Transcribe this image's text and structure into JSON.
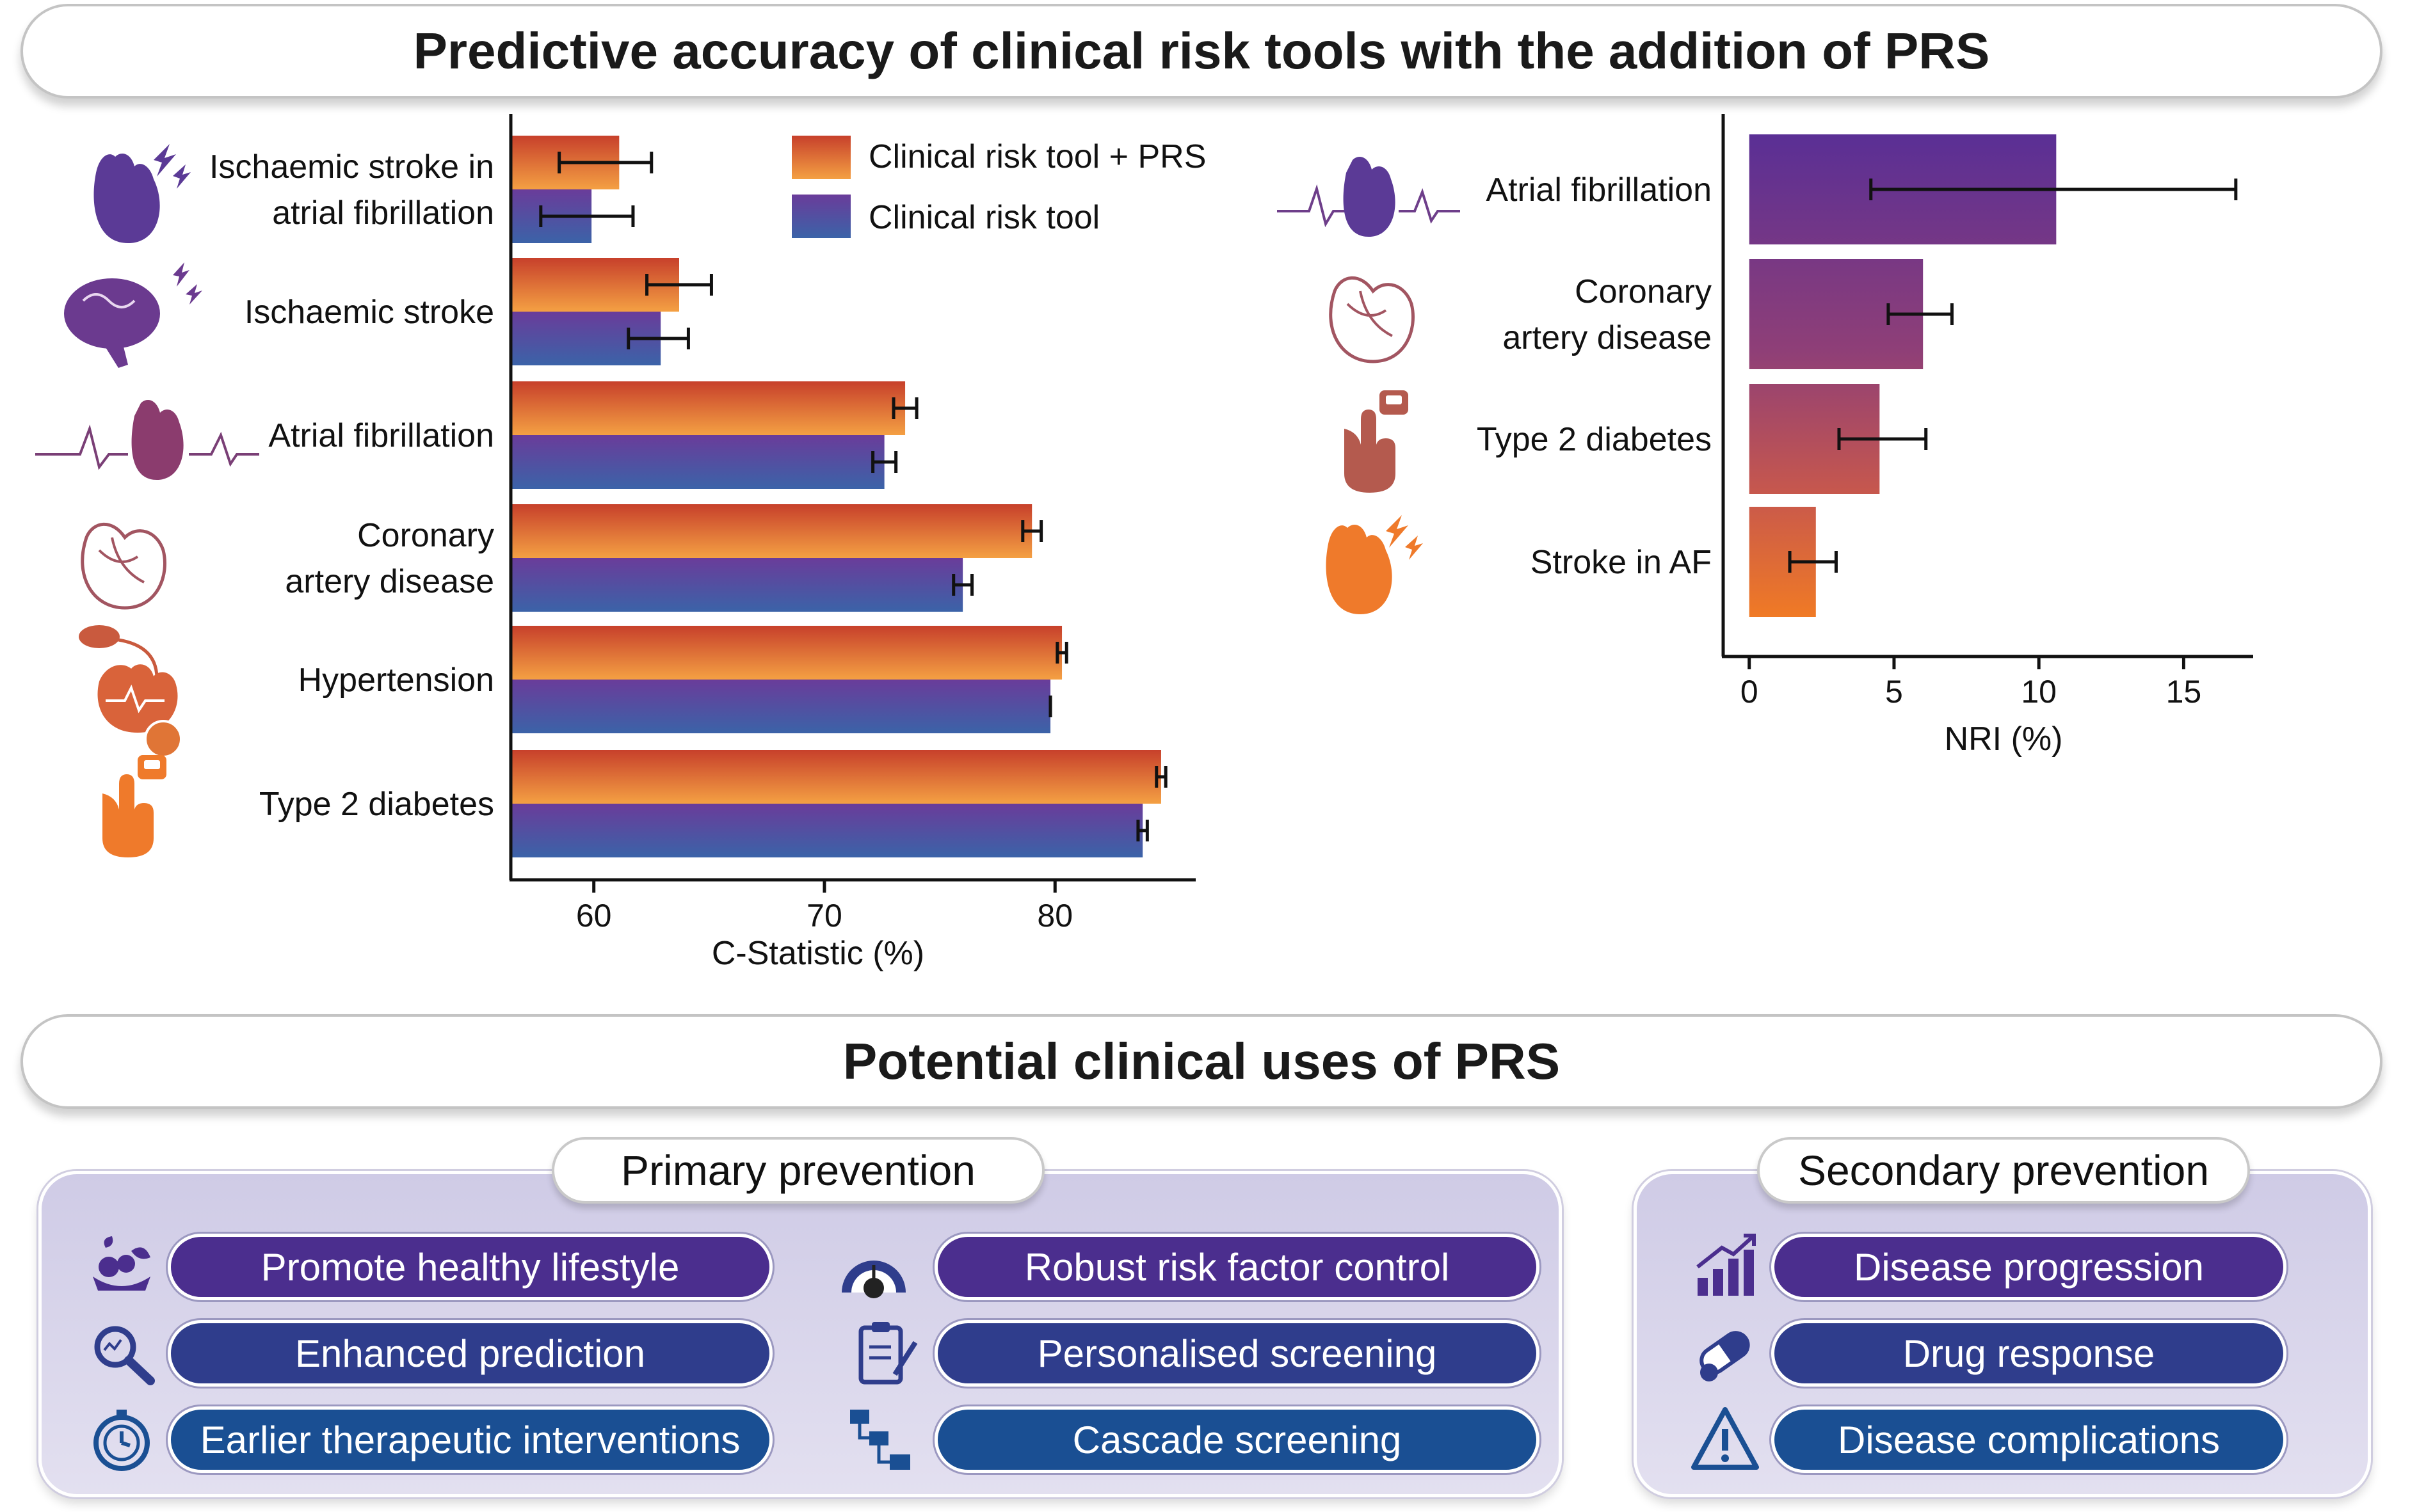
{
  "title": "Predictive accuracy of clinical risk tools with the addition of PRS",
  "section2_title": "Potential clinical uses of PRS",
  "colors": {
    "orange": "#ef7a2b",
    "purple": "#5b3a96",
    "blue": "#3b63a8"
  },
  "chart_data": [
    {
      "type": "bar",
      "orientation": "horizontal",
      "categories": [
        [
          "Ischaemic stroke in",
          "atrial fibrillation"
        ],
        [
          "Ischaemic stroke"
        ],
        [
          "Atrial fibrillation"
        ],
        [
          "Coronary",
          "artery disease"
        ],
        [
          "Hypertension"
        ],
        [
          "Type 2 diabetes"
        ]
      ],
      "series": [
        {
          "name": "Clinical risk tool + PRS",
          "values": [
            61.1,
            63.7,
            73.5,
            79.0,
            80.3,
            84.6
          ],
          "error_low": [
            58.5,
            62.3,
            73.0,
            78.6,
            80.1,
            84.4
          ],
          "error_high": [
            62.5,
            65.1,
            74.0,
            79.4,
            80.5,
            84.8
          ]
        },
        {
          "name": "Clinical risk tool",
          "values": [
            59.9,
            62.9,
            72.6,
            76.0,
            79.8,
            83.8
          ],
          "error_low": [
            57.7,
            61.5,
            72.1,
            75.6,
            79.8,
            83.6
          ],
          "error_high": [
            61.7,
            64.1,
            73.1,
            76.4,
            79.8,
            84.0
          ]
        }
      ],
      "xlabel": "C-Statistic (%)",
      "xlim": [
        56.4,
        86.1
      ],
      "xticks": [
        60,
        70,
        80
      ],
      "legend": "top-right"
    },
    {
      "type": "bar",
      "orientation": "horizontal",
      "categories": [
        [
          "Atrial fibrillation"
        ],
        [
          "Coronary",
          "artery disease"
        ],
        [
          "Type 2 diabetes"
        ],
        [
          "Stroke in AF"
        ]
      ],
      "values": [
        10.6,
        6.0,
        4.5,
        2.3
      ],
      "error_low": [
        4.2,
        4.8,
        3.1,
        1.4
      ],
      "error_high": [
        16.8,
        7.0,
        6.1,
        3.0
      ],
      "xlabel": "NRI (%)",
      "xlim": [
        -0.9,
        17.4
      ],
      "xticks": [
        0,
        5,
        10,
        15
      ]
    }
  ],
  "primary": {
    "title": "Primary prevention",
    "items": [
      {
        "label": "Promote healthy lifestyle",
        "icon": "healthy-food-icon"
      },
      {
        "label": "Enhanced prediction",
        "icon": "magnifier-icon"
      },
      {
        "label": "Earlier therapeutic interventions",
        "icon": "timer-icon"
      },
      {
        "label": "Robust risk factor control",
        "icon": "gauge-icon"
      },
      {
        "label": "Personalised screening",
        "icon": "clipboard-icon"
      },
      {
        "label": "Cascade screening",
        "icon": "cascade-icon"
      }
    ]
  },
  "secondary": {
    "title": "Secondary prevention",
    "items": [
      {
        "label": "Disease progression",
        "icon": "progress-chart-icon"
      },
      {
        "label": "Drug response",
        "icon": "pill-icon"
      },
      {
        "label": "Disease complications",
        "icon": "warning-icon"
      }
    ]
  }
}
